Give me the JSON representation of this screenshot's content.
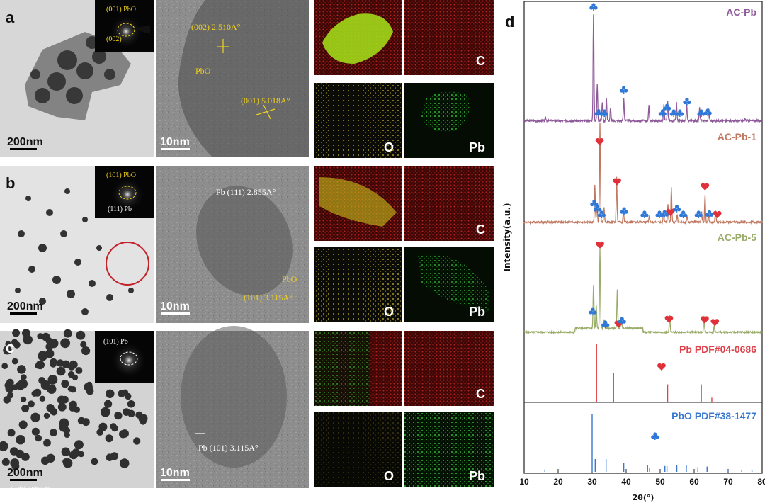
{
  "panels": {
    "a": {
      "letter": "a",
      "saed": [
        "(001) PbO",
        "(002)"
      ],
      "tem_scale": "200nm",
      "hrtem_scale": "10nm",
      "hrtem_ann": [
        "(002) 2.510A°",
        "PbO",
        "(001) 5.018A°"
      ],
      "eds_labels": [
        "C",
        "O",
        "Pb"
      ]
    },
    "b": {
      "letter": "b",
      "saed": [
        "(101) PbO",
        "(111) Pb"
      ],
      "tem_scale": "200nm",
      "hrtem_scale": "10nm",
      "hrtem_ann": [
        "Pb (111) 2.855A°",
        "PbO",
        "(101) 3.115A°"
      ],
      "eds_labels": [
        "C",
        "O",
        "Pb"
      ]
    },
    "c": {
      "letter": "c",
      "saed": [
        "(101) Pb"
      ],
      "tem_scale": "200nm",
      "hrtem_scale": "10nm",
      "hrtem_ann": [
        "Pb (101) 3.115A°"
      ],
      "eds_labels": [
        "C",
        "O",
        "Pb"
      ]
    }
  },
  "watermark": "大数跨境",
  "chart_data": {
    "type": "line",
    "panel_letter": "d",
    "xlabel": "2θ(°)",
    "ylabel": "Intensity(a.u.)",
    "xlim": [
      10,
      80
    ],
    "xticks": [
      10,
      20,
      30,
      40,
      50,
      60,
      70,
      80
    ],
    "series": [
      {
        "name": "AC-Pb",
        "color": "#8e5a9a",
        "peaks": [
          {
            "x": 30.4,
            "h": 1.0
          },
          {
            "x": 31.5,
            "h": 0.35
          },
          {
            "x": 33.0,
            "h": 0.18
          },
          {
            "x": 34.2,
            "h": 0.22
          },
          {
            "x": 35.4,
            "h": 0.12
          },
          {
            "x": 39.3,
            "h": 0.22
          },
          {
            "x": 46.7,
            "h": 0.14
          },
          {
            "x": 51.1,
            "h": 0.15
          },
          {
            "x": 52.2,
            "h": 0.18
          },
          {
            "x": 54.8,
            "h": 0.17
          },
          {
            "x": 57.8,
            "h": 0.15
          },
          {
            "x": 61.6,
            "h": 0.12
          },
          {
            "x": 64.3,
            "h": 0.12
          },
          {
            "x": 16.3,
            "h": 0.03
          },
          {
            "x": 75.0,
            "h": 0.02
          }
        ],
        "markers": [
          {
            "x": 30.4,
            "sym": "club"
          },
          {
            "x": 31.9,
            "sym": "club"
          },
          {
            "x": 33.6,
            "sym": "club"
          },
          {
            "x": 39.3,
            "sym": "club"
          },
          {
            "x": 50.7,
            "sym": "club"
          },
          {
            "x": 52.0,
            "sym": "club"
          },
          {
            "x": 54.0,
            "sym": "club"
          },
          {
            "x": 55.8,
            "sym": "club"
          },
          {
            "x": 57.9,
            "sym": "club"
          },
          {
            "x": 62.1,
            "sym": "club"
          },
          {
            "x": 64.0,
            "sym": "club"
          }
        ]
      },
      {
        "name": "AC-Pb-1",
        "color": "#c07860",
        "peaks": [
          {
            "x": 30.8,
            "h": 0.38
          },
          {
            "x": 31.4,
            "h": 0.2
          },
          {
            "x": 32.3,
            "h": 1.0
          },
          {
            "x": 33.5,
            "h": 0.15
          },
          {
            "x": 37.2,
            "h": 0.45
          },
          {
            "x": 39.2,
            "h": 0.12
          },
          {
            "x": 46.8,
            "h": 0.07
          },
          {
            "x": 51.0,
            "h": 0.09
          },
          {
            "x": 52.3,
            "h": 0.18
          },
          {
            "x": 53.3,
            "h": 0.35
          },
          {
            "x": 55.0,
            "h": 0.08
          },
          {
            "x": 57.9,
            "h": 0.06
          },
          {
            "x": 62.2,
            "h": 0.1
          },
          {
            "x": 63.2,
            "h": 0.28
          },
          {
            "x": 64.2,
            "h": 0.08
          },
          {
            "x": 66.3,
            "h": 0.12
          }
        ],
        "markers": [
          {
            "x": 30.6,
            "sym": "club"
          },
          {
            "x": 32.2,
            "sym": "heart"
          },
          {
            "x": 31.6,
            "sym": "club"
          },
          {
            "x": 32.8,
            "sym": "club"
          },
          {
            "x": 37.3,
            "sym": "heart"
          },
          {
            "x": 39.4,
            "sym": "club"
          },
          {
            "x": 45.4,
            "sym": "club"
          },
          {
            "x": 49.8,
            "sym": "club"
          },
          {
            "x": 51.3,
            "sym": "club"
          },
          {
            "x": 53.0,
            "sym": "heart"
          },
          {
            "x": 54.9,
            "sym": "club"
          },
          {
            "x": 56.8,
            "sym": "club"
          },
          {
            "x": 61.3,
            "sym": "club"
          },
          {
            "x": 63.2,
            "sym": "heart"
          },
          {
            "x": 64.5,
            "sym": "club"
          },
          {
            "x": 66.8,
            "sym": "heart"
          }
        ]
      },
      {
        "name": "AC-Pb-5",
        "color": "#9aab6a",
        "peaks": [
          {
            "x": 30.4,
            "h": 0.55
          },
          {
            "x": 31.2,
            "h": 0.3
          },
          {
            "x": 32.3,
            "h": 1.0
          },
          {
            "x": 33.5,
            "h": 0.12
          },
          {
            "x": 37.4,
            "h": 0.48
          },
          {
            "x": 38.6,
            "h": 0.15
          },
          {
            "x": 52.8,
            "h": 0.22
          },
          {
            "x": 62.9,
            "h": 0.2
          },
          {
            "x": 65.9,
            "h": 0.08
          }
        ],
        "markers": [
          {
            "x": 30.2,
            "sym": "club"
          },
          {
            "x": 32.3,
            "sym": "heart"
          },
          {
            "x": 33.9,
            "sym": "club"
          },
          {
            "x": 37.8,
            "sym": "heart"
          },
          {
            "x": 38.8,
            "sym": "club"
          },
          {
            "x": 52.6,
            "sym": "heart"
          },
          {
            "x": 63.1,
            "sym": "heart"
          },
          {
            "x": 66.1,
            "sym": "heart"
          }
        ]
      },
      {
        "name": "Pb PDF#04-0686",
        "color": "#e0404a",
        "sticks": [
          {
            "x": 31.3,
            "h": 1.0
          },
          {
            "x": 36.3,
            "h": 0.5
          },
          {
            "x": 52.2,
            "h": 0.31
          },
          {
            "x": 62.1,
            "h": 0.31
          },
          {
            "x": 65.2,
            "h": 0.08
          }
        ],
        "markers": [
          {
            "x": 50.4,
            "sym": "heart"
          }
        ]
      },
      {
        "name": "PbO PDF#38-1477",
        "color": "#3a78d0",
        "sticks": [
          {
            "x": 30.0,
            "h": 1.0
          },
          {
            "x": 30.9,
            "h": 0.22
          },
          {
            "x": 34.1,
            "h": 0.22
          },
          {
            "x": 39.3,
            "h": 0.15
          },
          {
            "x": 46.3,
            "h": 0.12
          },
          {
            "x": 46.9,
            "h": 0.06
          },
          {
            "x": 51.4,
            "h": 0.1
          },
          {
            "x": 52.0,
            "h": 0.1
          },
          {
            "x": 54.9,
            "h": 0.12
          },
          {
            "x": 57.7,
            "h": 0.11
          },
          {
            "x": 61.1,
            "h": 0.08
          },
          {
            "x": 63.8,
            "h": 0.09
          },
          {
            "x": 16.1,
            "h": 0.04
          },
          {
            "x": 70.0,
            "h": 0.03
          },
          {
            "x": 74.0,
            "h": 0.03
          },
          {
            "x": 77.0,
            "h": 0.03
          }
        ],
        "markers": [
          {
            "x": 48.5,
            "sym": "club"
          }
        ]
      }
    ]
  }
}
